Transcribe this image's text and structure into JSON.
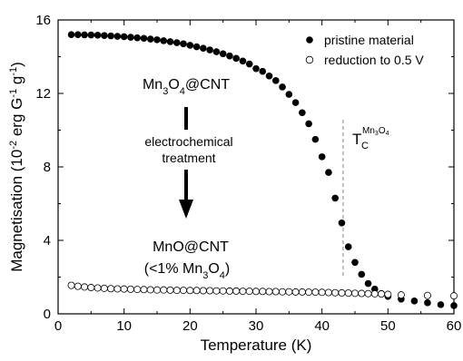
{
  "chart_data": {
    "type": "scatter",
    "title": "",
    "xlabel": "Temperature (K)",
    "ylabel": {
      "base": "Magnetisation (10",
      "exp1": "-2",
      "mid": " erg G",
      "exp2": "-1",
      "mid2": " g",
      "exp3": "-1",
      "end": ")"
    },
    "xlim": [
      0,
      60
    ],
    "ylim": [
      0,
      16
    ],
    "xticks": [
      0,
      10,
      20,
      30,
      40,
      50,
      60
    ],
    "yticks": [
      0,
      4,
      8,
      12,
      16
    ],
    "legend_position": "top-right",
    "grid": false,
    "series": [
      {
        "name": "pristine material",
        "marker": "filled-circle",
        "color": "#000000",
        "x": [
          2,
          3,
          4,
          5,
          6,
          7,
          8,
          9,
          10,
          11,
          12,
          13,
          14,
          15,
          16,
          17,
          18,
          19,
          20,
          21,
          22,
          23,
          24,
          25,
          26,
          27,
          28,
          29,
          30,
          31,
          32,
          33,
          34,
          35,
          36,
          37,
          38,
          39,
          40,
          41,
          42,
          43,
          44,
          45,
          46,
          47,
          48,
          49,
          50,
          52,
          54,
          56,
          58,
          60
        ],
        "y": [
          15.2,
          15.2,
          15.19,
          15.18,
          15.17,
          15.15,
          15.13,
          15.11,
          15.09,
          15.06,
          15.03,
          15.0,
          14.96,
          14.92,
          14.87,
          14.82,
          14.76,
          14.7,
          14.62,
          14.54,
          14.46,
          14.37,
          14.27,
          14.16,
          14.04,
          13.91,
          13.76,
          13.6,
          13.35,
          13.2,
          12.95,
          12.7,
          12.35,
          11.95,
          11.5,
          10.95,
          10.35,
          9.5,
          8.55,
          7.7,
          6.3,
          4.95,
          3.65,
          2.8,
          2.15,
          1.65,
          1.35,
          1.1,
          0.95,
          0.8,
          0.7,
          0.6,
          0.5,
          0.45
        ]
      },
      {
        "name": "reduction to 0.5 V",
        "marker": "open-circle",
        "color": "#000000",
        "x": [
          2,
          3,
          4,
          5,
          6,
          7,
          8,
          9,
          10,
          11,
          12,
          13,
          14,
          15,
          16,
          17,
          18,
          19,
          20,
          21,
          22,
          23,
          24,
          25,
          26,
          27,
          28,
          29,
          30,
          31,
          32,
          33,
          34,
          35,
          36,
          37,
          38,
          39,
          40,
          41,
          42,
          43,
          44,
          45,
          46,
          47,
          48,
          49,
          50,
          52,
          56,
          60
        ],
        "y": [
          1.55,
          1.5,
          1.46,
          1.43,
          1.41,
          1.39,
          1.37,
          1.36,
          1.35,
          1.34,
          1.33,
          1.32,
          1.31,
          1.3,
          1.3,
          1.29,
          1.28,
          1.28,
          1.27,
          1.27,
          1.26,
          1.26,
          1.25,
          1.25,
          1.24,
          1.24,
          1.23,
          1.23,
          1.22,
          1.22,
          1.21,
          1.21,
          1.2,
          1.2,
          1.19,
          1.19,
          1.18,
          1.18,
          1.17,
          1.16,
          1.15,
          1.14,
          1.13,
          1.12,
          1.11,
          1.1,
          1.09,
          1.08,
          1.06,
          1.03,
          1.0,
          0.98
        ]
      }
    ],
    "annotations": {
      "top_label": {
        "p1": "Mn",
        "s1": "3",
        "p2": "O",
        "s2": "4",
        "p3": "@CNT"
      },
      "process_line1": "electrochemical",
      "process_line2": "treatment",
      "bottom_label": "MnO@CNT",
      "bottom_sub": {
        "p1": "(<1% Mn",
        "s1": "3",
        "p2": "O",
        "s2": "4",
        "p3": ")"
      },
      "tc_label": {
        "main": "T",
        "sub": "C",
        "sup": "Mn",
        "sup_s1": "3",
        "sup_mid": "O",
        "sup_s2": "4"
      },
      "tc_x": 43.2
    }
  }
}
